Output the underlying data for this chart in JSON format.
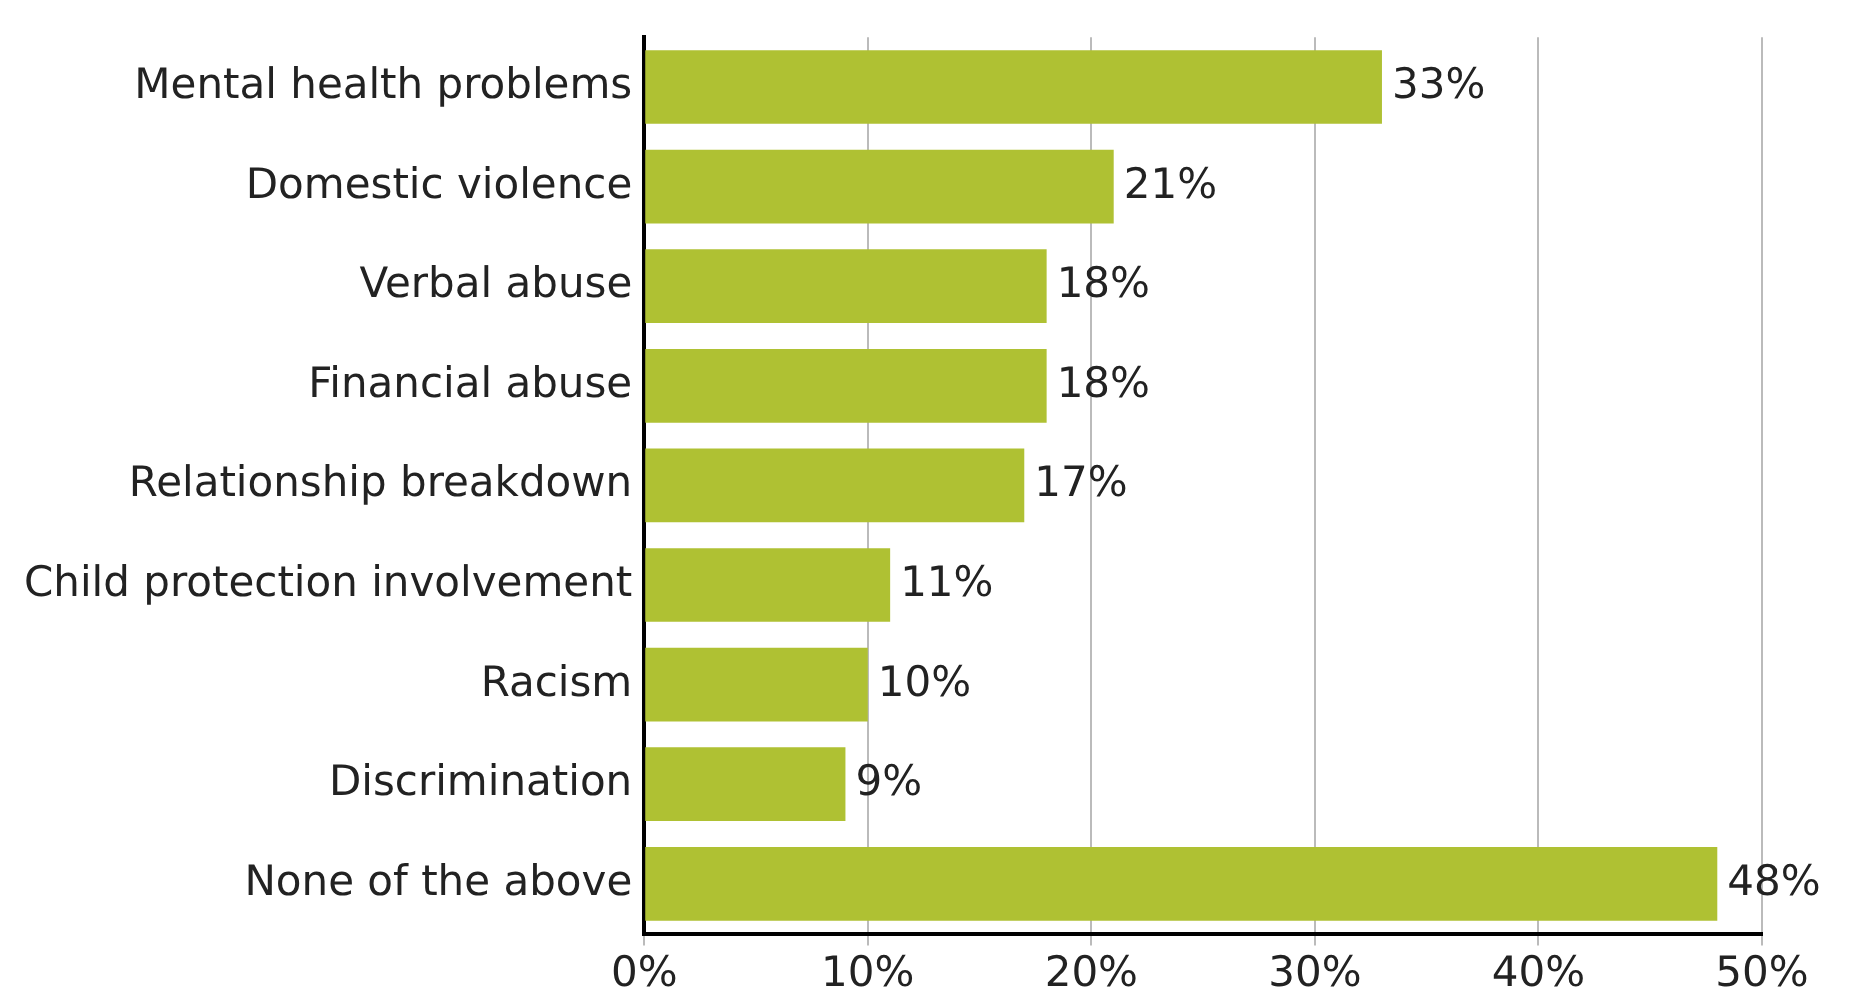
{
  "chart_data": {
    "type": "bar",
    "orientation": "horizontal",
    "categories": [
      "Mental health problems",
      "Domestic violence",
      "Verbal abuse",
      "Financial abuse",
      "Relationship breakdown",
      "Child protection involvement",
      "Racism",
      "Discrimination",
      "None of the above"
    ],
    "values": [
      33,
      21,
      18,
      18,
      17,
      11,
      10,
      9,
      48
    ],
    "value_labels": [
      "33%",
      "21%",
      "18%",
      "18%",
      "17%",
      "11%",
      "10%",
      "9%",
      "48%"
    ],
    "color": "#afc133",
    "xlim": [
      0,
      50
    ],
    "xticks": [
      {
        "value": 0,
        "label": "0%"
      },
      {
        "value": 10,
        "label": "10%"
      },
      {
        "value": 20,
        "label": "20%"
      },
      {
        "value": 30,
        "label": "30%"
      },
      {
        "value": 40,
        "label": "40%"
      },
      {
        "value": 50,
        "label": "50%"
      }
    ],
    "grid": "x",
    "legend": false
  }
}
